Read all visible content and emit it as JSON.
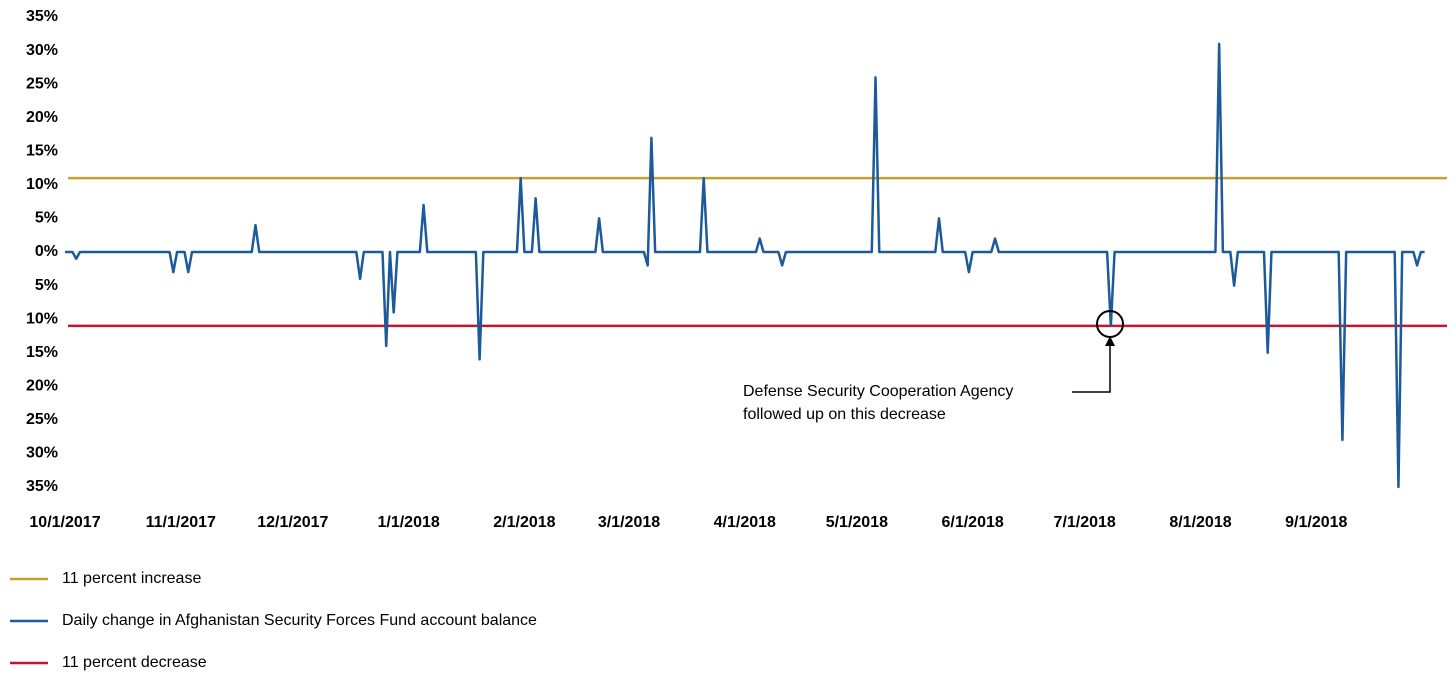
{
  "chart_data": {
    "type": "line",
    "xlim": [
      "2017-10-01",
      "2018-10-06"
    ],
    "xticks": [
      {
        "value": "2017-10-01",
        "label": "10/1/2017"
      },
      {
        "value": "2017-11-01",
        "label": "11/1/2017"
      },
      {
        "value": "2017-12-01",
        "label": "12/1/2017"
      },
      {
        "value": "2018-01-01",
        "label": "1/1/2018"
      },
      {
        "value": "2018-02-01",
        "label": "2/1/2018"
      },
      {
        "value": "2018-03-01",
        "label": "3/1/2018"
      },
      {
        "value": "2018-04-01",
        "label": "4/1/2018"
      },
      {
        "value": "2018-05-01",
        "label": "5/1/2018"
      },
      {
        "value": "2018-06-01",
        "label": "6/1/2018"
      },
      {
        "value": "2018-07-01",
        "label": "7/1/2018"
      },
      {
        "value": "2018-08-01",
        "label": "8/1/2018"
      },
      {
        "value": "2018-09-01",
        "label": "9/1/2018"
      }
    ],
    "ylim": [
      -35,
      35
    ],
    "yticks": [
      {
        "value": 35,
        "label": "35%"
      },
      {
        "value": 30,
        "label": "30%"
      },
      {
        "value": 25,
        "label": "25%"
      },
      {
        "value": 20,
        "label": "20%"
      },
      {
        "value": 15,
        "label": "15%"
      },
      {
        "value": 10,
        "label": "10%"
      },
      {
        "value": 5,
        "label": "5%"
      },
      {
        "value": 0,
        "label": "0%"
      },
      {
        "value": -5,
        "label": "5%"
      },
      {
        "value": -10,
        "label": "10%"
      },
      {
        "value": -15,
        "label": "15%"
      },
      {
        "value": -20,
        "label": "20%"
      },
      {
        "value": -25,
        "label": "25%"
      },
      {
        "value": -30,
        "label": "30%"
      },
      {
        "value": -35,
        "label": "35%"
      }
    ],
    "x": [
      "2017-10-01",
      "2017-10-03",
      "2017-10-04",
      "2017-10-05",
      "2017-10-29",
      "2017-10-30",
      "2017-10-31",
      "2017-11-02",
      "2017-11-03",
      "2017-11-04",
      "2017-11-20",
      "2017-11-21",
      "2017-11-22",
      "2017-12-18",
      "2017-12-19",
      "2017-12-20",
      "2017-12-25",
      "2017-12-26",
      "2017-12-27",
      "2017-12-28",
      "2017-12-29",
      "2018-01-04",
      "2018-01-05",
      "2018-01-06",
      "2018-01-19",
      "2018-01-20",
      "2018-01-21",
      "2018-01-30",
      "2018-01-31",
      "2018-02-01",
      "2018-02-03",
      "2018-02-04",
      "2018-02-05",
      "2018-02-20",
      "2018-02-21",
      "2018-02-22",
      "2018-03-05",
      "2018-03-06",
      "2018-03-07",
      "2018-03-08",
      "2018-03-20",
      "2018-03-21",
      "2018-03-22",
      "2018-04-04",
      "2018-04-05",
      "2018-04-06",
      "2018-04-10",
      "2018-04-11",
      "2018-04-12",
      "2018-05-05",
      "2018-05-06",
      "2018-05-07",
      "2018-05-22",
      "2018-05-23",
      "2018-05-24",
      "2018-05-30",
      "2018-05-31",
      "2018-06-01",
      "2018-06-06",
      "2018-06-07",
      "2018-06-08",
      "2018-07-07",
      "2018-07-08",
      "2018-07-09",
      "2018-08-05",
      "2018-08-06",
      "2018-08-07",
      "2018-08-09",
      "2018-08-10",
      "2018-08-11",
      "2018-08-18",
      "2018-08-19",
      "2018-08-20",
      "2018-09-07",
      "2018-09-08",
      "2018-09-09",
      "2018-09-22",
      "2018-09-23",
      "2018-09-24",
      "2018-09-27",
      "2018-09-28",
      "2018-09-29",
      "2018-09-30"
    ],
    "series": [
      {
        "name": "11 percent increase",
        "color": "#c9a030",
        "y": 11
      },
      {
        "name": "Daily change in Afghanistan Security Forces Fund account balance",
        "color": "#1d5a9a",
        "values": [
          0,
          0,
          -1,
          0,
          0,
          -3,
          0,
          0,
          -3,
          0,
          0,
          4,
          0,
          0,
          -4,
          0,
          0,
          -14,
          0,
          -9,
          0,
          0,
          7,
          0,
          0,
          -16,
          0,
          0,
          11,
          0,
          0,
          8,
          0,
          0,
          5,
          0,
          0,
          -2,
          17,
          0,
          0,
          11,
          0,
          0,
          2,
          0,
          0,
          -2,
          0,
          0,
          26,
          0,
          0,
          5,
          0,
          0,
          -3,
          0,
          0,
          2,
          0,
          0,
          -11,
          0,
          0,
          31,
          0,
          0,
          -5,
          0,
          0,
          -15,
          0,
          0,
          -28,
          0,
          0,
          -35,
          0,
          0,
          -2,
          0,
          0
        ]
      },
      {
        "name": "11 percent decrease",
        "color": "#c0182f",
        "y": -11
      }
    ],
    "annotation": [
      "Defense Security Cooperation Agency",
      "followed up on this decrease"
    ]
  }
}
